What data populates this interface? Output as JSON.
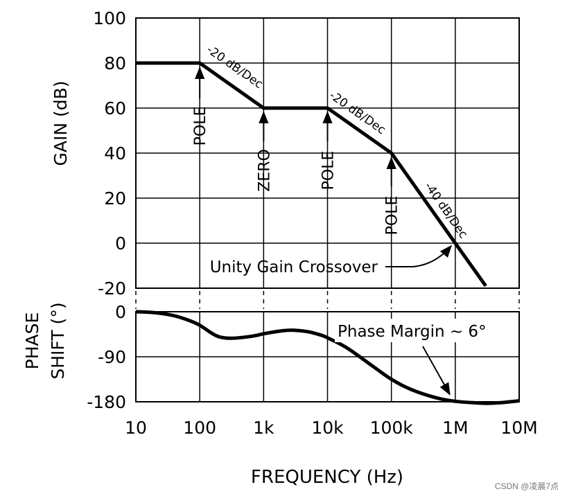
{
  "chart_data": [
    {
      "type": "line",
      "panel": "gain",
      "ylabel": "GAIN (dB)",
      "x_scale": "log",
      "xlim": [
        10,
        10000000
      ],
      "ylim": [
        -20,
        100
      ],
      "yticks": [
        100,
        80,
        60,
        40,
        20,
        0,
        -20
      ],
      "grid": true,
      "series": [
        {
          "name": "Gain",
          "x": [
            10,
            100,
            1000,
            10000,
            100000,
            1000000,
            3000000
          ],
          "y": [
            80,
            80,
            60,
            60,
            40,
            0,
            -19
          ]
        }
      ],
      "annotations": [
        {
          "id": "pole1",
          "text": "POLE",
          "x": 100,
          "y": 80,
          "kind": "pole"
        },
        {
          "id": "zero1",
          "text": "ZERO",
          "x": 1000,
          "y": 60,
          "kind": "zero"
        },
        {
          "id": "pole2",
          "text": "POLE",
          "x": 10000,
          "y": 60,
          "kind": "pole"
        },
        {
          "id": "pole3",
          "text": "POLE",
          "x": 100000,
          "y": 40,
          "kind": "pole"
        },
        {
          "id": "slope1",
          "text": "-20 dB/Dec"
        },
        {
          "id": "slope2",
          "text": "-20 dB/Dec"
        },
        {
          "id": "slope3",
          "text": "-40 dB/Dec"
        },
        {
          "id": "crossover",
          "text": "Unity Gain Crossover",
          "x": 1000000,
          "y": 0
        }
      ]
    },
    {
      "type": "line",
      "panel": "phase",
      "ylabel_lines": [
        "PHASE",
        "SHIFT (°)"
      ],
      "x_scale": "log",
      "xlim": [
        10,
        10000000
      ],
      "ylim": [
        -180,
        0
      ],
      "yticks": [
        0,
        -90,
        -180
      ],
      "grid": true,
      "series": [
        {
          "name": "Phase",
          "x": [
            10,
            20,
            40,
            70,
            100,
            150,
            200,
            300,
            500,
            800,
            1000,
            2000,
            3000,
            5000,
            8000,
            10000,
            20000,
            50000,
            100000,
            200000,
            500000,
            1000000,
            2000000,
            3000000,
            5000000,
            10000000
          ],
          "y": [
            0,
            -2,
            -8,
            -18,
            -27,
            -42,
            -50,
            -53,
            -51,
            -47,
            -44,
            -38,
            -37,
            -40,
            -47,
            -52,
            -72,
            -108,
            -135,
            -155,
            -172,
            -179,
            -182,
            -183,
            -182,
            -178
          ]
        }
      ],
      "annotations": [
        {
          "id": "phase_margin",
          "text": "Phase Margin ~ 6°",
          "x": 1000000,
          "y": -179
        }
      ]
    }
  ],
  "x_axis": {
    "tick_values": [
      10,
      100,
      1000,
      10000,
      100000,
      1000000,
      10000000
    ],
    "tick_labels": [
      "10",
      "100",
      "1k",
      "10k",
      "100k",
      "1M",
      "10M"
    ],
    "title": "FREQUENCY (Hz)"
  },
  "watermark": "CSDN @凌晨7点"
}
